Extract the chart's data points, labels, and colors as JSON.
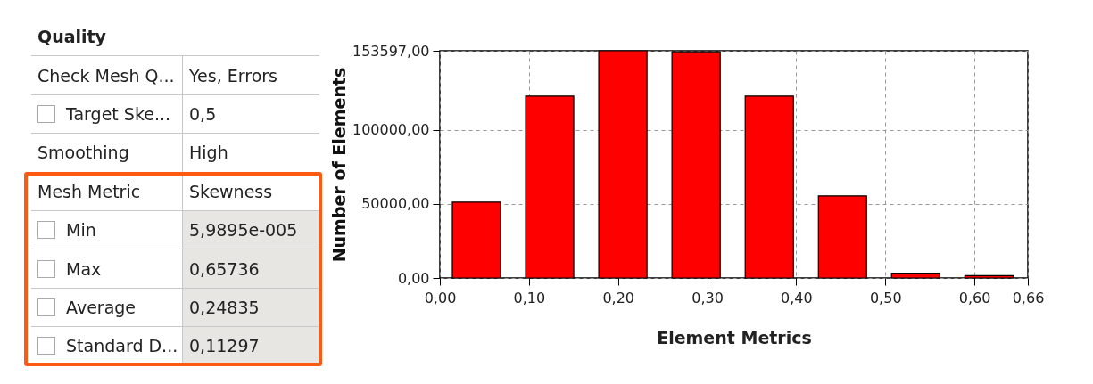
{
  "chart_data": [
    {
      "type": "other",
      "title": "Quality",
      "annotations": [
        "Check Mesh Q...",
        "Yes, Errors",
        "Target Ske...",
        "0,5",
        "Smoothing",
        "High",
        "Mesh Metric",
        "Skewness",
        "Min",
        "5,9895e-005",
        "Max",
        "0,65736",
        "Average",
        "0,24835",
        "Standard D...",
        "0,11297"
      ]
    },
    {
      "type": "histogram",
      "xlabel": "Element Metrics",
      "ylabel": "Number of Elements",
      "color": "#ff0000",
      "bins": [
        0,
        0.0822,
        0.1643,
        0.2465,
        0.3287,
        0.4109,
        0.493,
        0.5752,
        0.6574
      ],
      "values": [
        51300,
        123000,
        153597,
        152900,
        123000,
        55500,
        3200,
        1600
      ],
      "xlim": [
        0,
        0.66
      ],
      "xticks": [
        {
          "value": 0,
          "label": "0,00"
        },
        {
          "value": 0.1,
          "label": "0,10"
        },
        {
          "value": 0.2,
          "label": "0,20"
        },
        {
          "value": 0.3,
          "label": "0,30"
        },
        {
          "value": 0.4,
          "label": "0,40"
        },
        {
          "value": 0.5,
          "label": "0,50"
        },
        {
          "value": 0.6,
          "label": "0,60"
        },
        {
          "value": 0.66,
          "label": "0,66"
        }
      ],
      "ylim": [
        0,
        153597
      ],
      "yticks": [
        {
          "value": 0,
          "label": "0,00"
        },
        {
          "value": 50000,
          "label": "50000,00"
        },
        {
          "value": 100000,
          "label": "100000,00"
        },
        {
          "value": 153597,
          "label": "153597,00"
        }
      ],
      "grid": true
    }
  ]
}
